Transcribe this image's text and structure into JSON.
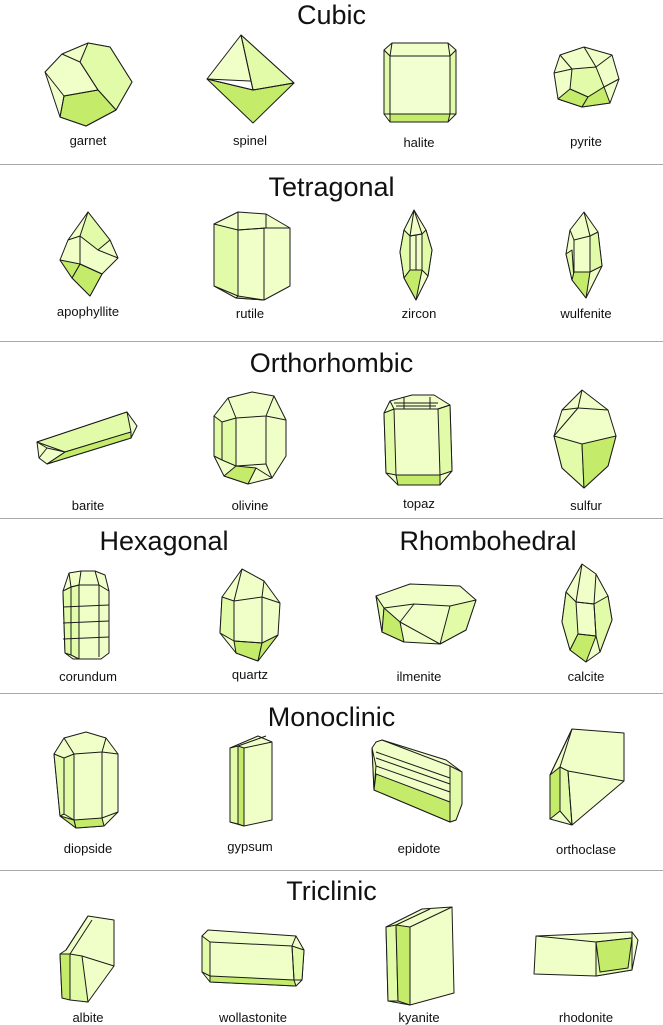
{
  "sections": [
    {
      "title": "Cubic",
      "minerals": [
        "garnet",
        "spinel",
        "halite",
        "pyrite"
      ]
    },
    {
      "title": "Tetragonal",
      "minerals": [
        "apophyllite",
        "rutile",
        "zircon",
        "wulfenite"
      ]
    },
    {
      "title": "Orthorhombic",
      "minerals": [
        "barite",
        "olivine",
        "topaz",
        "sulfur"
      ]
    },
    {
      "titles": [
        "Hexagonal",
        "Rhombohedral"
      ],
      "minerals": [
        "corundum",
        "quartz",
        "ilmenite",
        "calcite"
      ]
    },
    {
      "title": "Monoclinic",
      "minerals": [
        "diopside",
        "gypsum",
        "epidote",
        "orthoclase"
      ]
    },
    {
      "title": "Triclinic",
      "minerals": [
        "albite",
        "wollastonite",
        "kyanite",
        "rhodonite"
      ]
    }
  ],
  "colors": {
    "light": "#f0ffc8",
    "medium": "#e2fba8",
    "dark": "#c4ec6a",
    "divider": "#a8a8a8"
  }
}
